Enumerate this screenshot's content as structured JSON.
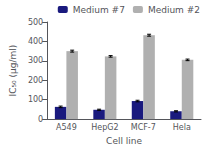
{
  "chart_data": {
    "type": "bar",
    "categories": [
      "A549",
      "HepG2",
      "MCF-7",
      "Hela"
    ],
    "series": [
      {
        "name": "Medium #7",
        "color": "#1a1a7e",
        "values": [
          63,
          48,
          93,
          40
        ],
        "errors": [
          4,
          3,
          4,
          3
        ]
      },
      {
        "name": "Medium #2",
        "color": "#b0b0b0",
        "values": [
          350,
          323,
          432,
          305
        ],
        "errors": [
          5,
          4,
          5,
          4
        ]
      }
    ],
    "xlabel": "Cell line",
    "ylabel": "IC₅₀ (μg/ml)",
    "ylim": [
      0,
      500
    ],
    "yticks": [
      0,
      100,
      200,
      300,
      400,
      500
    ],
    "grid": false,
    "legend": "upper right"
  }
}
